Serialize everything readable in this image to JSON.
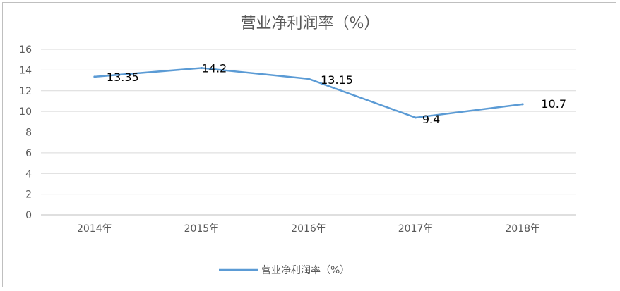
{
  "chart_data": {
    "type": "line",
    "title": "营业净利润率（%）",
    "categories": [
      "2014年",
      "2015年",
      "2016年",
      "2017年",
      "2018年"
    ],
    "series": [
      {
        "name": "营业净利润率（%）",
        "values": [
          13.35,
          14.2,
          13.15,
          9.4,
          10.7
        ],
        "labels": [
          "13.35",
          "14.2",
          "13.15",
          "9.4",
          "10.7"
        ],
        "color": "#5b9bd5"
      }
    ],
    "ylim": [
      0,
      16
    ],
    "yticks": [
      0,
      2,
      4,
      6,
      8,
      10,
      12,
      14,
      16
    ],
    "grid": true,
    "legend": "bottom"
  }
}
